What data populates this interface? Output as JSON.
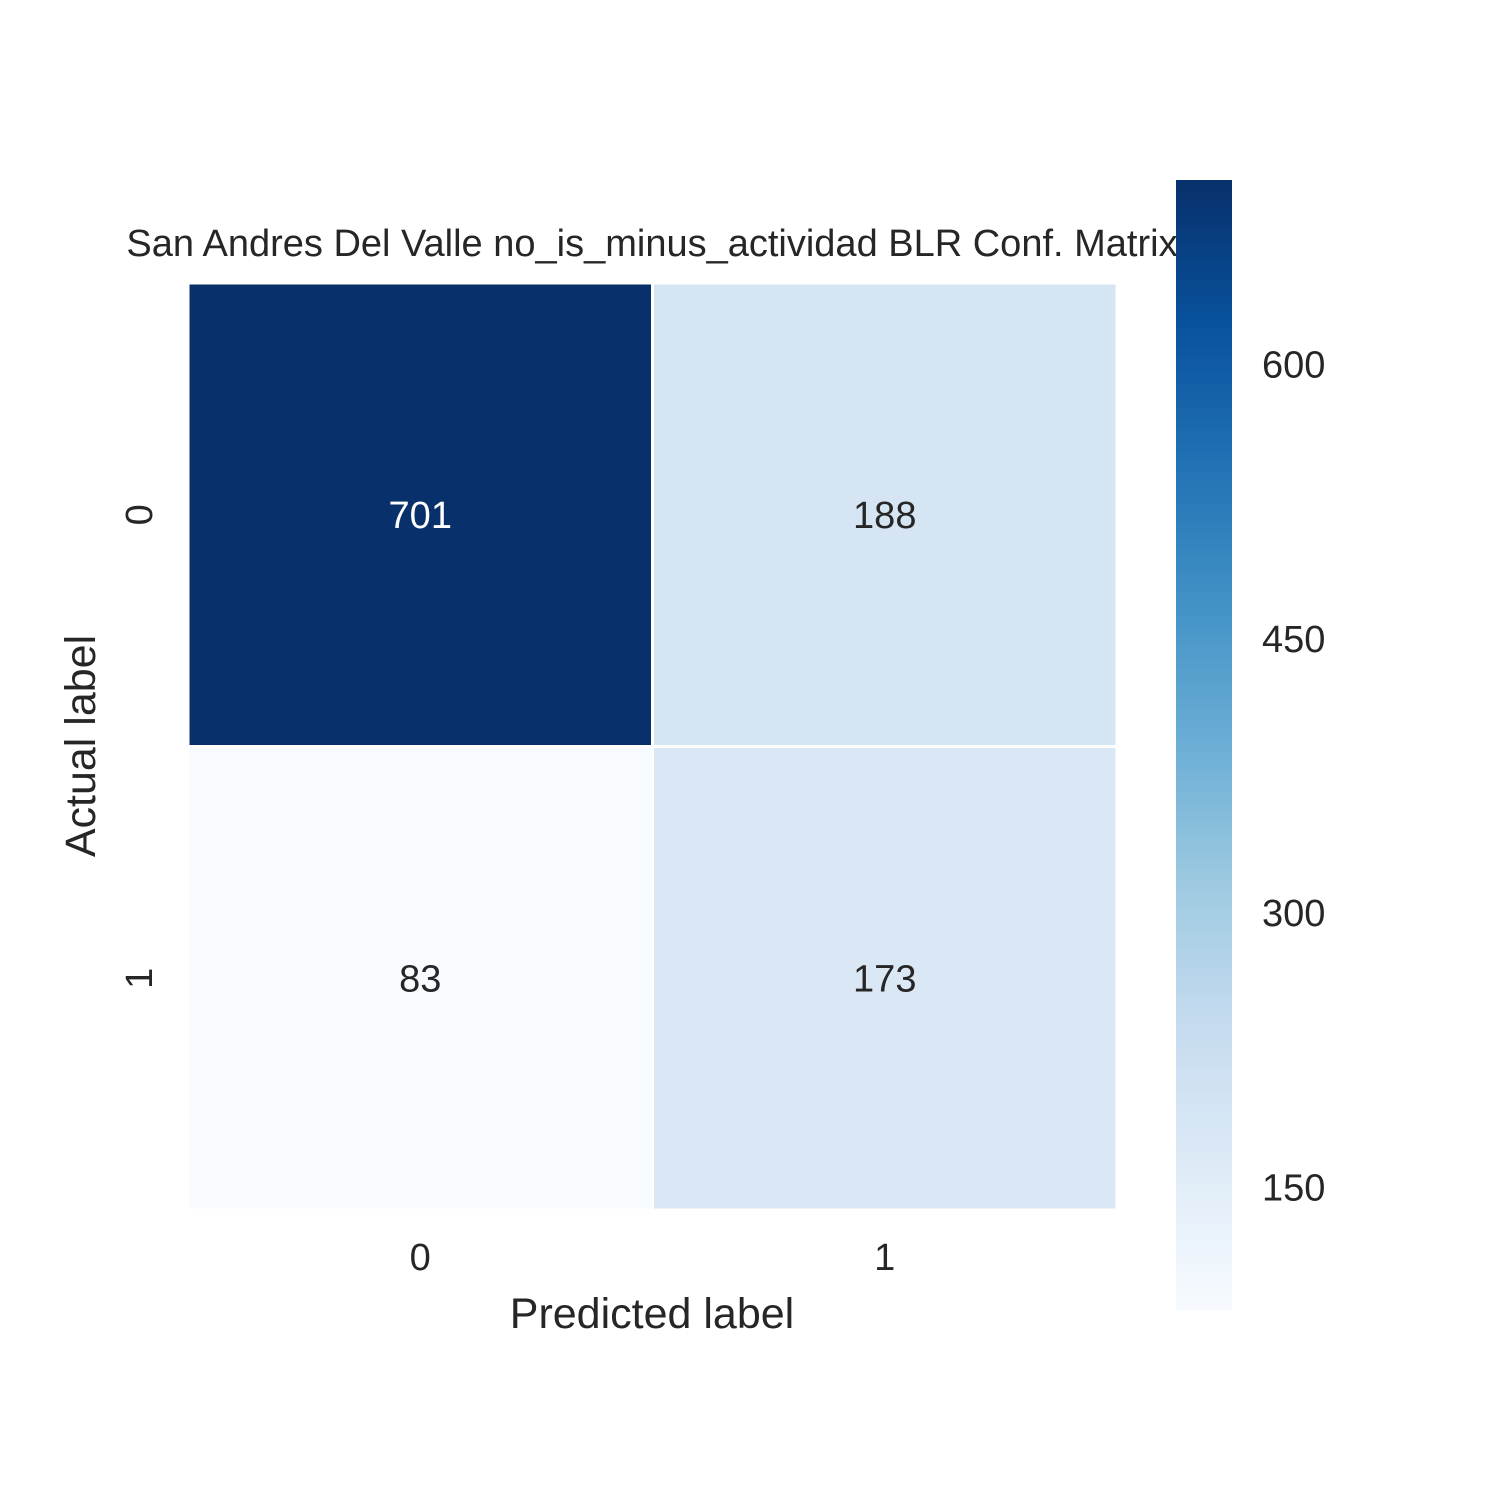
{
  "chart_data": {
    "type": "heatmap",
    "title": "San Andres Del Valle no_is_minus_actividad BLR Conf. Matrix",
    "xlabel": "Predicted label",
    "ylabel": "Actual label",
    "x_categories": [
      "0",
      "1"
    ],
    "y_categories": [
      "0",
      "1"
    ],
    "values": [
      [
        701,
        188
      ],
      [
        83,
        173
      ]
    ],
    "colormap": "Blues",
    "colorbar": {
      "range": [
        83,
        701
      ],
      "ticks": [
        150,
        300,
        450,
        600
      ],
      "tick_labels": [
        "150",
        "300",
        "450",
        "600"
      ]
    },
    "grid": false
  }
}
